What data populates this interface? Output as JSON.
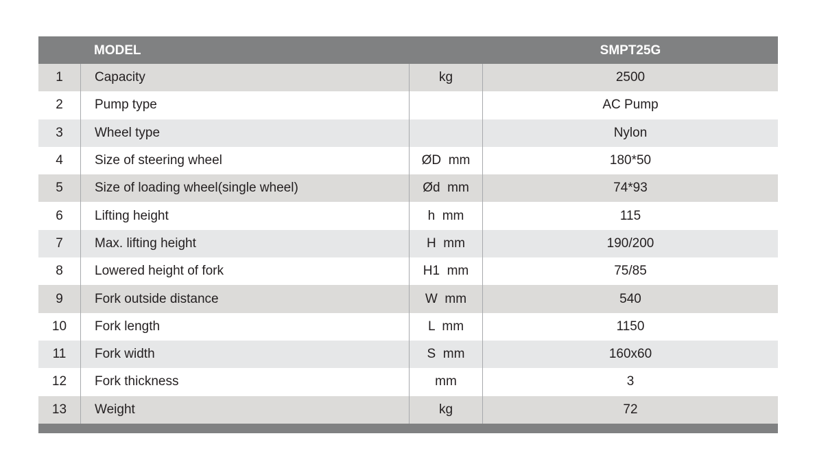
{
  "header": {
    "model_label": "MODEL",
    "model_value": "SMPT25G"
  },
  "rows": [
    {
      "no": "1",
      "name": "Capacity",
      "unit": "kg",
      "value": "2500",
      "shade": "g"
    },
    {
      "no": "2",
      "name": "Pump type",
      "unit": "",
      "value": "AC Pump",
      "shade": "w"
    },
    {
      "no": "3",
      "name": "Wheel type",
      "unit": "",
      "value": "Nylon",
      "shade": "l"
    },
    {
      "no": "4",
      "name": "Size of steering wheel",
      "unit": "ØD  mm",
      "value": "180*50",
      "shade": "w"
    },
    {
      "no": "5",
      "name": "Size of loading wheel(single wheel)",
      "unit": "Ød  mm",
      "value": "74*93",
      "shade": "g"
    },
    {
      "no": "6",
      "name": "Lifting height",
      "unit": "h  mm",
      "value": "115",
      "shade": "w"
    },
    {
      "no": "7",
      "name": "Max. lifting height",
      "unit": "H  mm",
      "value": "190/200",
      "shade": "l"
    },
    {
      "no": "8",
      "name": "Lowered height of fork",
      "unit": "H1  mm",
      "value": "75/85",
      "shade": "w"
    },
    {
      "no": "9",
      "name": "Fork outside distance",
      "unit": "W  mm",
      "value": "540",
      "shade": "g"
    },
    {
      "no": "10",
      "name": "Fork length",
      "unit": "L  mm",
      "value": "1150",
      "shade": "w"
    },
    {
      "no": "11",
      "name": "Fork width",
      "unit": "S  mm",
      "value": "160x60",
      "shade": "l"
    },
    {
      "no": "12",
      "name": "Fork thickness",
      "unit": "mm",
      "value": "3",
      "shade": "w"
    },
    {
      "no": "13",
      "name": "Weight",
      "unit": "kg",
      "value": "72",
      "shade": "g"
    }
  ],
  "colors": {
    "header": "#808182",
    "row_gray": "#dcdbd9",
    "row_light": "#e6e7e8",
    "row_white": "#ffffff"
  }
}
